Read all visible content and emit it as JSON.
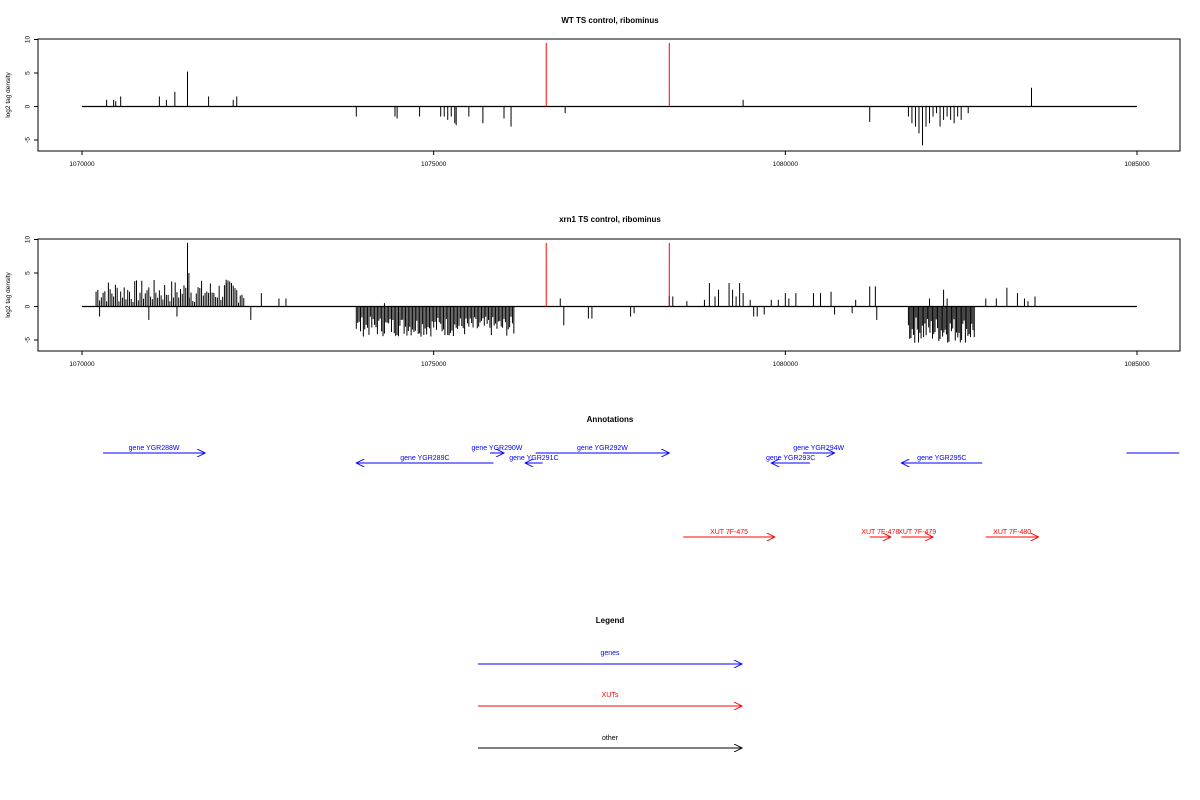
{
  "colors": {
    "genes": "#0000ff",
    "xuts": "#ff0000",
    "other": "#000000",
    "reads": "#000000",
    "marker": "#ff0000"
  },
  "y_axis_label": "log2 tag density",
  "x_ticks": [
    "1070000",
    "1075000",
    "1080000",
    "1085000"
  ],
  "y_ticks": [
    "10",
    "5",
    "0",
    "-5"
  ],
  "chart_data": [
    {
      "type": "bar",
      "title": "WT TS control, ribominus",
      "ylabel": "log2 tag density",
      "xlim": [
        1070000,
        1085000
      ],
      "ylim": [
        -6,
        10
      ],
      "marker_lines": [
        1076600,
        1078350
      ],
      "bars": [
        [
          1070350,
          1.0
        ],
        [
          1070450,
          1.0
        ],
        [
          1070480,
          0.8
        ],
        [
          1070550,
          1.5
        ],
        [
          1071100,
          1.5
        ],
        [
          1071200,
          1.0
        ],
        [
          1071320,
          2.2
        ],
        [
          1071500,
          5.2
        ],
        [
          1071800,
          1.5
        ],
        [
          1072150,
          1.0
        ],
        [
          1072200,
          1.5
        ],
        [
          1073900,
          -1.5
        ],
        [
          1074450,
          -1.5
        ],
        [
          1074480,
          -1.8
        ],
        [
          1074800,
          -1.5
        ],
        [
          1075100,
          -1.5
        ],
        [
          1075150,
          -1.5
        ],
        [
          1075200,
          -2.0
        ],
        [
          1075250,
          -1.5
        ],
        [
          1075300,
          -2.5
        ],
        [
          1075320,
          -2.8
        ],
        [
          1075500,
          -1.5
        ],
        [
          1075700,
          -2.5
        ],
        [
          1076000,
          -1.8
        ],
        [
          1076100,
          -3.0
        ],
        [
          1076870,
          -1.0
        ],
        [
          1079400,
          1.0
        ],
        [
          1081200,
          -2.3
        ],
        [
          1081750,
          -1.5
        ],
        [
          1081800,
          -2.5
        ],
        [
          1081850,
          -3.0
        ],
        [
          1081900,
          -4.0
        ],
        [
          1081950,
          -5.8
        ],
        [
          1082000,
          -3.0
        ],
        [
          1082050,
          -2.5
        ],
        [
          1082100,
          -1.5
        ],
        [
          1082150,
          -1.0
        ],
        [
          1082200,
          -3.0
        ],
        [
          1082250,
          -2.0
        ],
        [
          1082300,
          -1.5
        ],
        [
          1082350,
          -2.0
        ],
        [
          1082400,
          -2.5
        ],
        [
          1082450,
          -1.5
        ],
        [
          1082500,
          -2.0
        ],
        [
          1082600,
          -1.0
        ],
        [
          1083500,
          2.8
        ]
      ]
    },
    {
      "type": "bar",
      "title": "xrn1 TS control, ribominus",
      "ylabel": "log2 tag density",
      "xlim": [
        1070000,
        1085000
      ],
      "ylim": [
        -6,
        10
      ],
      "marker_lines": [
        1076600,
        1078350
      ],
      "density_regions": [
        {
          "start": 1070200,
          "end": 1072300,
          "min": 0.5,
          "max": 4.0,
          "step": 25
        },
        {
          "start": 1073900,
          "end": 1076150,
          "min": -4.5,
          "max": -1.5,
          "step": 20
        },
        {
          "start": 1081750,
          "end": 1082700,
          "min": -5.5,
          "max": -1.5,
          "step": 18
        }
      ],
      "bars": [
        [
          1070250,
          -1.5
        ],
        [
          1070950,
          -2.0
        ],
        [
          1071350,
          -1.5
        ],
        [
          1071500,
          9.5
        ],
        [
          1071520,
          5.0
        ],
        [
          1072050,
          4.0
        ],
        [
          1072400,
          -2.0
        ],
        [
          1072550,
          2.0
        ],
        [
          1072800,
          1.2
        ],
        [
          1072900,
          1.2
        ],
        [
          1074300,
          0.5
        ],
        [
          1076800,
          1.2
        ],
        [
          1076850,
          -2.8
        ],
        [
          1077200,
          -1.8
        ],
        [
          1077250,
          -1.8
        ],
        [
          1077800,
          -1.5
        ],
        [
          1077850,
          -1.0
        ],
        [
          1078350,
          1.6
        ],
        [
          1078400,
          1.5
        ],
        [
          1078600,
          0.8
        ],
        [
          1078850,
          1.0
        ],
        [
          1078920,
          3.5
        ],
        [
          1079000,
          1.5
        ],
        [
          1079050,
          2.5
        ],
        [
          1079200,
          3.5
        ],
        [
          1079250,
          2.5
        ],
        [
          1079300,
          1.5
        ],
        [
          1079350,
          3.5
        ],
        [
          1079400,
          2.0
        ],
        [
          1079500,
          1.0
        ],
        [
          1079550,
          -1.5
        ],
        [
          1079600,
          -1.5
        ],
        [
          1079700,
          -1.2
        ],
        [
          1079800,
          1.0
        ],
        [
          1079900,
          1.0
        ],
        [
          1080000,
          2.0
        ],
        [
          1080050,
          1.2
        ],
        [
          1080150,
          2.0
        ],
        [
          1080400,
          2.0
        ],
        [
          1080500,
          2.0
        ],
        [
          1080700,
          -1.2
        ],
        [
          1080650,
          2.2
        ],
        [
          1080950,
          -1.0
        ],
        [
          1081000,
          1.0
        ],
        [
          1081200,
          3.0
        ],
        [
          1081300,
          -2.0
        ],
        [
          1081280,
          3.0
        ],
        [
          1082050,
          1.2
        ],
        [
          1082250,
          2.5
        ],
        [
          1082300,
          1.2
        ],
        [
          1082850,
          1.2
        ],
        [
          1083000,
          1.2
        ],
        [
          1083150,
          2.8
        ],
        [
          1083300,
          2.0
        ],
        [
          1083400,
          1.2
        ],
        [
          1083450,
          0.8
        ],
        [
          1083550,
          1.5
        ]
      ]
    }
  ],
  "annotations": {
    "title": "Annotations",
    "genes": [
      {
        "label": "gene YGR288W",
        "start": 1070300,
        "end": 1071750,
        "strand": "+",
        "row": 0
      },
      {
        "label": "gene YGR290W",
        "start": 1075800,
        "end": 1076000,
        "strand": "+",
        "row": 0
      },
      {
        "label": "gene YGR292W",
        "start": 1076450,
        "end": 1078350,
        "strand": "+",
        "row": 0
      },
      {
        "label": "gene YGR294W",
        "start": 1080250,
        "end": 1080700,
        "strand": "+",
        "row": 0
      },
      {
        "label": "gene YGR289C",
        "start": 1073900,
        "end": 1075850,
        "strand": "-",
        "row": 1
      },
      {
        "label": "gene YGR291C",
        "start": 1076300,
        "end": 1076550,
        "strand": "-",
        "row": 1
      },
      {
        "label": "gene YGR293C",
        "start": 1079800,
        "end": 1080350,
        "strand": "-",
        "row": 1
      },
      {
        "label": "gene YGR295C",
        "start": 1081650,
        "end": 1082800,
        "strand": "-",
        "row": 1
      },
      {
        "label": "",
        "start": 1084850,
        "end": 1085600,
        "strand": "none",
        "row": 0
      }
    ],
    "xuts": [
      {
        "label": "XUT 7F-475",
        "start": 1078550,
        "end": 1079850,
        "strand": "+"
      },
      {
        "label": "XUT 7F-478",
        "start": 1081200,
        "end": 1081500,
        "strand": "+"
      },
      {
        "label": "XUT 7F-479",
        "start": 1081650,
        "end": 1082100,
        "strand": "+"
      },
      {
        "label": "XUT 7F-480",
        "start": 1082850,
        "end": 1083600,
        "strand": "+"
      }
    ]
  },
  "legend": {
    "title": "Legend",
    "items": [
      {
        "label": "genes",
        "color": "#0000ff"
      },
      {
        "label": "XUTs",
        "color": "#ff0000"
      },
      {
        "label": "other",
        "color": "#000000"
      }
    ]
  }
}
